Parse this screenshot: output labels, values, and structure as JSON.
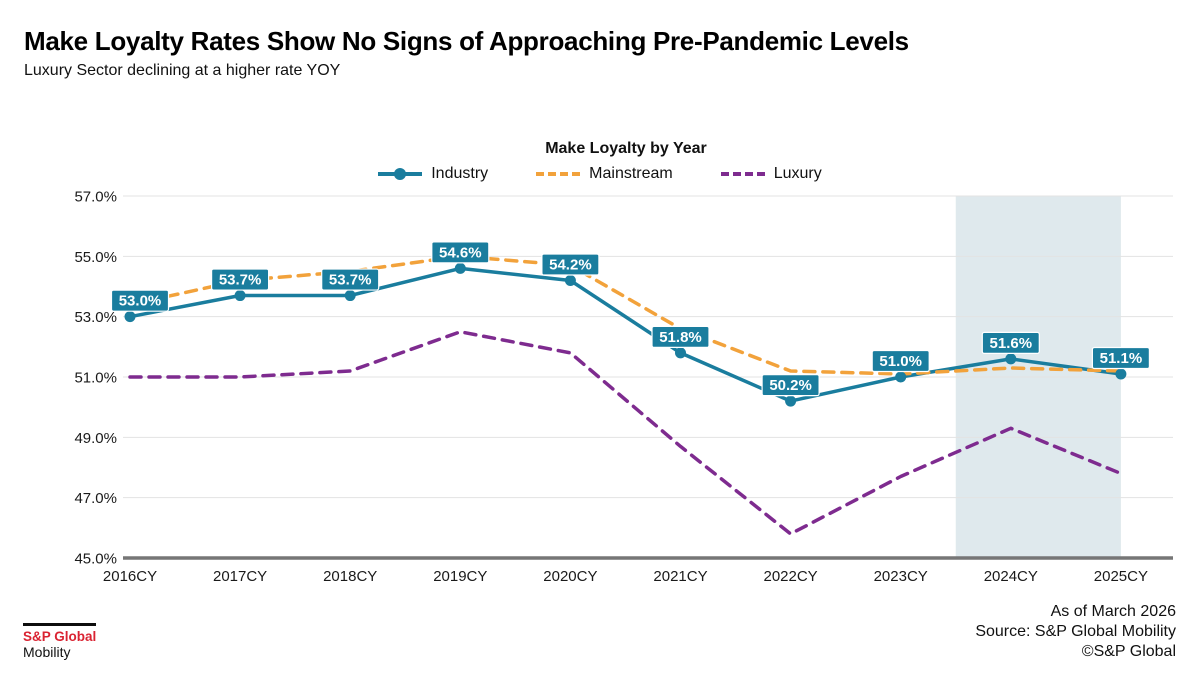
{
  "page": {
    "title": "Make Loyalty Rates Show No Signs of Approaching Pre-Pandemic Levels",
    "subtitle": "Luxury Sector declining at a higher rate YOY"
  },
  "chart_data": {
    "type": "line",
    "title": "Make Loyalty by Year",
    "categories": [
      "2016CY",
      "2017CY",
      "2018CY",
      "2019CY",
      "2020CY",
      "2021CY",
      "2022CY",
      "2023CY",
      "2024CY",
      "2025CY"
    ],
    "ylim": [
      45,
      57
    ],
    "ytick_labels": [
      "57.0%",
      "55.0%",
      "53.0%",
      "51.0%",
      "49.0%",
      "47.0%",
      "45.0%"
    ],
    "grid": true,
    "legend_position": "top",
    "series": [
      {
        "name": "Industry",
        "color": "#1a7d9e",
        "line_style": "solid",
        "markers": true,
        "values": [
          53.0,
          53.7,
          53.7,
          54.6,
          54.2,
          51.8,
          50.2,
          51.0,
          51.6,
          51.1
        ],
        "data_labels": [
          "53.0%",
          "53.7%",
          "53.7%",
          "54.6%",
          "54.2%",
          "51.8%",
          "50.2%",
          "51.0%",
          "51.6%",
          "51.1%"
        ]
      },
      {
        "name": "Mainstream",
        "color": "#f2a23b",
        "line_style": "dashed",
        "markers": false,
        "values": [
          53.4,
          54.2,
          54.5,
          55.0,
          54.7,
          52.6,
          51.2,
          51.1,
          51.3,
          51.2
        ]
      },
      {
        "name": "Luxury",
        "color": "#7e2b8f",
        "line_style": "dashed",
        "markers": false,
        "values": [
          51.0,
          51.0,
          51.2,
          52.5,
          51.8,
          48.7,
          45.8,
          47.7,
          49.3,
          47.8
        ]
      }
    ],
    "highlight_region": {
      "from_category_index": 7.5,
      "to_category_index": 9,
      "color": "#dfe9ed"
    }
  },
  "footer": {
    "as_of": "As of March 2026",
    "source": "Source: S&P Global Mobility",
    "copyright": "©S&P Global"
  },
  "logo": {
    "brand": "S&P Global",
    "division": "Mobility",
    "brand_color": "#da2332"
  }
}
